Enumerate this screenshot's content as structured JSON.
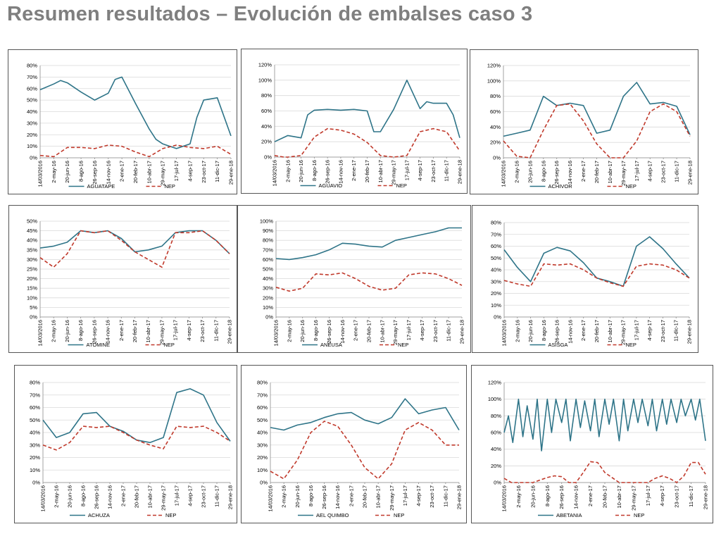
{
  "page": {
    "title": "Resumen resultados – Evolución de embalses caso 3"
  },
  "colors": {
    "volume": "#2e7488",
    "nep": "#c0392b"
  },
  "x_tick_labels": [
    "14/03/2016",
    "2-may-16",
    "20-jun-16",
    "8-ago-16",
    "26-sep-16",
    "14-nov-16",
    "2-ene-17",
    "20-feb-17",
    "10-abr-17",
    "29-may-17",
    "17-jul-17",
    "4-sep-17",
    "23-oct-17",
    "11-dic-17",
    "29-ene-18"
  ],
  "chart_data": [
    {
      "type": "line",
      "legend_position": "bottom",
      "grid": true,
      "y_ticks": [
        "0%",
        "10%",
        "20%",
        "30%",
        "40%",
        "50%",
        "60%",
        "70%",
        "80%"
      ],
      "ylim": [
        0,
        80
      ],
      "series": [
        {
          "name": "AGUATAPE",
          "style": "solid",
          "x": [
            0,
            1,
            1.5,
            2,
            3,
            4,
            5,
            5.5,
            6,
            7,
            8,
            8.5,
            9,
            10,
            11,
            11.5,
            12,
            13,
            14
          ],
          "values": [
            59,
            64,
            67,
            65,
            57,
            50,
            56,
            68,
            70,
            47,
            25,
            16,
            12,
            8,
            12,
            35,
            50,
            52,
            19
          ]
        },
        {
          "name": "NEP",
          "style": "dashed",
          "x": [
            0,
            1,
            2,
            3,
            4,
            5,
            6,
            7,
            8,
            9,
            10,
            11,
            12,
            13,
            14
          ],
          "values": [
            2,
            1,
            9,
            9,
            8,
            11,
            10,
            5,
            1,
            8,
            11,
            9,
            8,
            10,
            3
          ]
        }
      ]
    },
    {
      "type": "line",
      "legend_position": "bottom",
      "grid": true,
      "y_ticks": [
        "0%",
        "20%",
        "40%",
        "60%",
        "80%",
        "100%",
        "120%"
      ],
      "ylim": [
        0,
        120
      ],
      "series": [
        {
          "name": "AGUAVIO",
          "style": "solid",
          "x": [
            0,
            1,
            2,
            2.5,
            3,
            4,
            5,
            6,
            7,
            7.5,
            8,
            9,
            10,
            11,
            11.5,
            12,
            13,
            13.5,
            14
          ],
          "values": [
            20,
            28,
            25,
            55,
            61,
            62,
            61,
            62,
            60,
            33,
            33,
            62,
            100,
            63,
            72,
            70,
            70,
            55,
            25
          ]
        },
        {
          "name": "NEP",
          "style": "dashed",
          "x": [
            0,
            0.7,
            1,
            2,
            3,
            4,
            5,
            6,
            7,
            8,
            9,
            10,
            11,
            12,
            13,
            14
          ],
          "values": [
            2,
            0,
            0,
            2,
            26,
            37,
            35,
            30,
            19,
            2,
            0,
            2,
            33,
            37,
            33,
            8
          ]
        }
      ]
    },
    {
      "type": "line",
      "legend_position": "bottom",
      "grid": true,
      "y_ticks": [
        "0%",
        "20%",
        "40%",
        "60%",
        "80%",
        "100%",
        "120%"
      ],
      "ylim": [
        0,
        120
      ],
      "series": [
        {
          "name": "ACHIVOR",
          "style": "solid",
          "x": [
            0,
            1,
            2,
            3,
            4,
            5,
            6,
            7,
            8,
            9,
            10,
            11,
            12,
            13,
            14
          ],
          "values": [
            28,
            32,
            36,
            80,
            68,
            71,
            68,
            32,
            36,
            80,
            98,
            70,
            72,
            67,
            30
          ]
        },
        {
          "name": "NEP",
          "style": "dashed",
          "x": [
            0,
            1,
            2,
            3,
            4,
            5,
            6,
            7,
            8,
            9,
            10,
            11,
            12,
            13,
            14
          ],
          "values": [
            22,
            2,
            0,
            36,
            68,
            70,
            48,
            18,
            0,
            0,
            22,
            60,
            70,
            60,
            28
          ]
        }
      ]
    },
    {
      "type": "line",
      "legend_position": "bottom",
      "grid": true,
      "y_ticks": [
        "0%",
        "5%",
        "10%",
        "15%",
        "20%",
        "25%",
        "30%",
        "35%",
        "40%",
        "45%",
        "50%"
      ],
      "ylim": [
        0,
        50
      ],
      "series": [
        {
          "name": "ATOMINE",
          "style": "solid",
          "x": [
            0,
            1,
            2,
            3,
            4,
            5,
            6,
            7,
            8,
            9,
            10,
            11,
            12,
            13,
            14
          ],
          "values": [
            36,
            37,
            39,
            45,
            44,
            45,
            41,
            34,
            35,
            37,
            44,
            45,
            45,
            40,
            33
          ]
        },
        {
          "name": "NEP",
          "style": "dashed",
          "x": [
            0,
            1,
            2,
            3,
            4,
            5,
            6,
            7,
            8,
            9,
            10,
            11,
            12,
            13,
            14
          ],
          "values": [
            31,
            26,
            33,
            45,
            44,
            45,
            40,
            34,
            30,
            26,
            44,
            44,
            45,
            40,
            33
          ]
        }
      ]
    },
    {
      "type": "line",
      "legend_position": "bottom",
      "grid": true,
      "y_ticks": [
        "0%",
        "10%",
        "20%",
        "30%",
        "40%",
        "50%",
        "60%",
        "70%",
        "80%",
        "90%",
        "100%"
      ],
      "ylim": [
        0,
        100
      ],
      "series": [
        {
          "name": "ANEUSA",
          "style": "solid",
          "x": [
            0,
            1,
            2,
            3,
            4,
            5,
            6,
            7,
            8,
            9,
            10,
            11,
            12,
            13,
            14
          ],
          "values": [
            61,
            60,
            62,
            65,
            70,
            77,
            76,
            74,
            73,
            80,
            83,
            86,
            89,
            93,
            93
          ]
        },
        {
          "name": "NEP",
          "style": "dashed",
          "x": [
            0,
            1,
            2,
            3,
            4,
            5,
            6,
            7,
            8,
            9,
            10,
            11,
            12,
            13,
            14
          ],
          "values": [
            31,
            27,
            30,
            45,
            44,
            46,
            40,
            32,
            28,
            30,
            44,
            46,
            45,
            40,
            33
          ]
        }
      ]
    },
    {
      "type": "line",
      "legend_position": "bottom",
      "grid": true,
      "y_ticks": [
        "0%",
        "10%",
        "20%",
        "30%",
        "40%",
        "50%",
        "60%",
        "70%",
        "80%"
      ],
      "ylim": [
        0,
        80
      ],
      "series": [
        {
          "name": "ASISGA",
          "style": "solid",
          "x": [
            0,
            1,
            2,
            3,
            4,
            5,
            6,
            7,
            8,
            9,
            10,
            11,
            12,
            13,
            14
          ],
          "values": [
            57,
            42,
            30,
            54,
            59,
            56,
            46,
            33,
            30,
            26,
            60,
            68,
            58,
            45,
            33
          ]
        },
        {
          "name": "NEP",
          "style": "dashed",
          "x": [
            0,
            1,
            2,
            3,
            4,
            5,
            6,
            7,
            8,
            9,
            10,
            11,
            12,
            13,
            14
          ],
          "values": [
            31,
            28,
            26,
            45,
            44,
            45,
            40,
            33,
            29,
            26,
            43,
            45,
            44,
            40,
            33
          ]
        }
      ]
    },
    {
      "type": "line",
      "legend_position": "bottom",
      "grid": true,
      "y_ticks": [
        "0%",
        "10%",
        "20%",
        "30%",
        "40%",
        "50%",
        "60%",
        "70%",
        "80%"
      ],
      "ylim": [
        0,
        80
      ],
      "series": [
        {
          "name": "ACHUZA",
          "style": "solid",
          "x": [
            0,
            1,
            2,
            3,
            4,
            5,
            6,
            7,
            8,
            9,
            10,
            11,
            12,
            13,
            14
          ],
          "values": [
            50,
            36,
            40,
            55,
            56,
            45,
            41,
            34,
            32,
            36,
            72,
            75,
            70,
            48,
            33
          ]
        },
        {
          "name": "NEP",
          "style": "dashed",
          "x": [
            0,
            1,
            2,
            3,
            4,
            5,
            6,
            7,
            8,
            9,
            10,
            11,
            12,
            13,
            14
          ],
          "values": [
            30,
            26,
            32,
            45,
            44,
            45,
            40,
            34,
            30,
            27,
            45,
            44,
            45,
            40,
            33
          ]
        }
      ]
    },
    {
      "type": "line",
      "legend_position": "bottom",
      "grid": true,
      "y_ticks": [
        "0%",
        "10%",
        "20%",
        "30%",
        "40%",
        "50%",
        "60%",
        "70%",
        "80%"
      ],
      "ylim": [
        0,
        80
      ],
      "series": [
        {
          "name": "AEL QUIMBO",
          "style": "solid",
          "x": [
            0,
            1,
            2,
            3,
            4,
            5,
            6,
            7,
            8,
            9,
            10,
            11,
            12,
            13,
            14
          ],
          "values": [
            44,
            42,
            46,
            48,
            52,
            55,
            56,
            50,
            47,
            52,
            67,
            55,
            58,
            60,
            42
          ]
        },
        {
          "name": "NEP",
          "style": "dashed",
          "x": [
            0,
            1,
            2,
            3,
            4,
            5,
            6,
            7,
            8,
            9,
            10,
            11,
            12,
            13,
            14
          ],
          "values": [
            9,
            3,
            18,
            40,
            49,
            45,
            30,
            12,
            3,
            15,
            42,
            48,
            42,
            30,
            30
          ]
        }
      ]
    },
    {
      "type": "line",
      "legend_position": "bottom",
      "grid": true,
      "y_ticks": [
        "0%",
        "20%",
        "40%",
        "60%",
        "80%",
        "100%",
        "120%"
      ],
      "ylim": [
        0,
        120
      ],
      "series": [
        {
          "name": "ABETANIA",
          "style": "solid",
          "x": [
            0,
            0.3,
            0.6,
            1,
            1.3,
            1.6,
            2,
            2.3,
            2.6,
            3,
            3.3,
            3.6,
            4,
            4.3,
            4.6,
            5,
            5.3,
            5.6,
            6,
            6.3,
            6.6,
            7,
            7.3,
            7.6,
            8,
            8.3,
            8.6,
            9,
            9.3,
            9.6,
            10,
            10.3,
            10.6,
            11,
            11.3,
            11.6,
            12,
            12.3,
            12.6,
            13,
            13.3,
            13.6,
            14
          ],
          "values": [
            60,
            80,
            48,
            100,
            55,
            92,
            52,
            100,
            38,
            100,
            60,
            100,
            72,
            100,
            50,
            100,
            66,
            98,
            62,
            100,
            55,
            100,
            70,
            100,
            50,
            100,
            62,
            100,
            72,
            100,
            68,
            100,
            62,
            100,
            70,
            100,
            72,
            100,
            80,
            100,
            75,
            100,
            50
          ]
        },
        {
          "name": "NEP",
          "style": "dashed",
          "x": [
            0,
            0.5,
            1,
            2,
            3,
            3.5,
            4,
            4.5,
            5,
            5.5,
            6,
            6.5,
            7,
            8,
            9,
            9.5,
            10,
            10.5,
            11,
            11.5,
            12,
            12.5,
            13,
            13.5,
            14
          ],
          "values": [
            5,
            0,
            0,
            0,
            6,
            8,
            7,
            0,
            0,
            12,
            25,
            24,
            12,
            0,
            0,
            0,
            0,
            5,
            8,
            5,
            0,
            8,
            24,
            24,
            10
          ]
        }
      ]
    }
  ]
}
